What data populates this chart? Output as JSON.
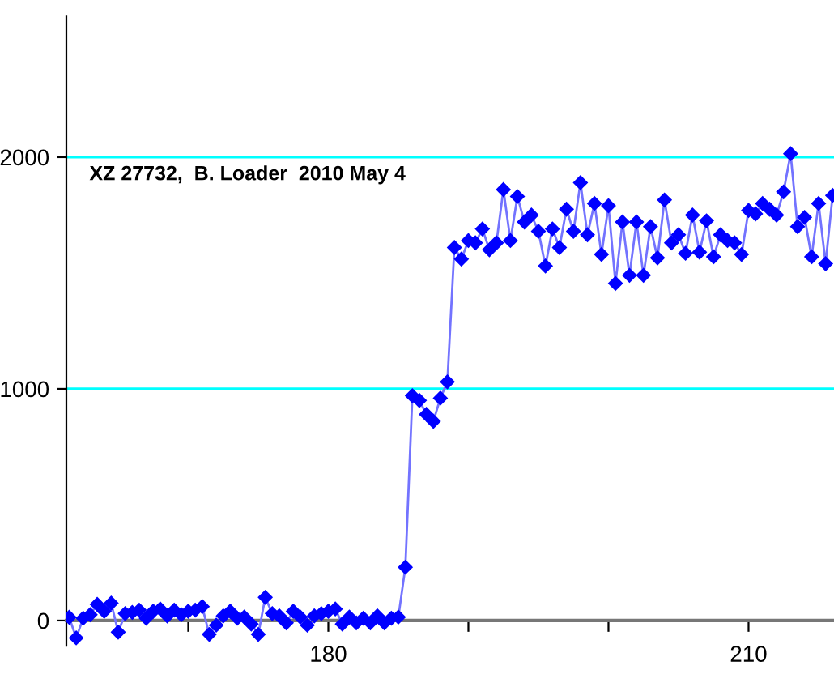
{
  "chart_data": {
    "type": "line",
    "marker": "diamond",
    "line_style": "solid",
    "grid": false,
    "legend": false,
    "annotations": [
      "XZ 27732,  B. Loader  2010 May 4"
    ],
    "x": [
      161.5,
      162,
      162.5,
      163,
      163.5,
      164,
      164.5,
      165,
      165.5,
      166,
      166.5,
      167,
      167.5,
      168,
      168.5,
      169,
      169.5,
      170,
      170.5,
      171,
      171.5,
      172,
      172.5,
      173,
      173.5,
      174,
      174.5,
      175,
      175.5,
      176,
      176.5,
      177,
      177.5,
      178,
      178.5,
      179,
      179.5,
      180,
      180.5,
      181,
      181.5,
      182,
      182.5,
      183,
      183.5,
      184,
      184.5,
      185,
      185.5,
      186,
      186.5,
      187,
      187.5,
      188,
      188.5,
      189,
      189.5,
      190,
      190.5,
      191,
      191.5,
      192,
      192.5,
      193,
      193.5,
      194,
      194.5,
      195,
      195.5,
      196,
      196.5,
      197,
      197.5,
      198,
      198.5,
      199,
      199.5,
      200,
      200.5,
      201,
      201.5,
      202,
      202.5,
      203,
      203.5,
      204,
      204.5,
      205,
      205.5,
      206,
      206.5,
      207,
      207.5,
      208,
      208.5,
      209,
      209.5,
      210,
      210.5,
      211,
      211.5,
      212,
      212.5,
      213,
      213.5,
      214,
      214.5,
      215,
      215.5,
      216
    ],
    "series": [
      {
        "color": "#0000ff",
        "values": [
          14,
          -75,
          10,
          25,
          70,
          40,
          75,
          -50,
          30,
          35,
          45,
          10,
          40,
          50,
          20,
          45,
          25,
          40,
          45,
          60,
          -60,
          -20,
          20,
          40,
          10,
          15,
          -15,
          -60,
          100,
          30,
          20,
          -10,
          40,
          15,
          -20,
          20,
          30,
          40,
          50,
          -15,
          15,
          -10,
          10,
          -10,
          20,
          -10,
          10,
          15,
          230,
          970,
          950,
          890,
          860,
          960,
          1030,
          1610,
          1560,
          1640,
          1630,
          1690,
          1600,
          1630,
          1860,
          1640,
          1830,
          1720,
          1750,
          1680,
          1530,
          1690,
          1610,
          1775,
          1680,
          1890,
          1665,
          1800,
          1580,
          1790,
          1455,
          1720,
          1490,
          1720,
          1490,
          1700,
          1565,
          1815,
          1630,
          1665,
          1585,
          1750,
          1590,
          1725,
          1570,
          1665,
          1640,
          1630,
          1580,
          1770,
          1755,
          1800,
          1775,
          1750,
          1850,
          2015,
          1700,
          1740,
          1570,
          1800,
          1540,
          1835
        ]
      }
    ],
    "xlim": [
      161.3,
      216.1
    ],
    "ylim": [
      -109,
      2607
    ],
    "xticks": [
      {
        "value": 170,
        "label": null
      },
      180,
      {
        "value": 190,
        "label": null
      },
      {
        "value": 200,
        "label": null
      },
      210
    ],
    "yticks": [
      0,
      1000,
      2000
    ],
    "ref_lines": [
      {
        "axis": "y",
        "value": 1000,
        "color": "#00ffff"
      },
      {
        "axis": "y",
        "value": 2000,
        "color": "#00ffff"
      }
    ]
  }
}
